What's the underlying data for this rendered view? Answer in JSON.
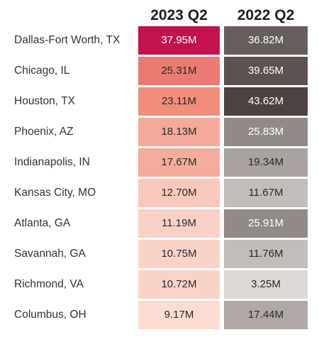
{
  "chart_data": {
    "type": "heatmap",
    "columns": [
      "2023 Q2",
      "2022 Q2"
    ],
    "rows": [
      "Dallas-Fort Worth, TX",
      "Chicago, IL",
      "Houston, TX",
      "Phoenix, AZ",
      "Indianapolis, IN",
      "Kansas City, MO",
      "Atlanta, GA",
      "Savannah, GA",
      "Richmond, VA",
      "Columbus, OH"
    ],
    "series": [
      {
        "values": [
          37.95,
          25.31,
          23.11,
          18.13,
          17.67,
          12.7,
          11.19,
          10.75,
          10.72,
          9.17
        ],
        "labels": [
          "37.95M",
          "25.31M",
          "23.11M",
          "18.13M",
          "17.67M",
          "12.70M",
          "11.19M",
          "10.75M",
          "10.72M",
          "9.17M"
        ]
      },
      {
        "values": [
          36.82,
          39.65,
          43.62,
          25.83,
          19.34,
          11.67,
          25.91,
          11.76,
          3.25,
          17.44
        ],
        "labels": [
          "36.82M",
          "39.65M",
          "43.62M",
          "25.83M",
          "19.34M",
          "11.67M",
          "25.91M",
          "11.76M",
          "3.25M",
          "17.44M"
        ]
      }
    ],
    "colors": {
      "col_0": [
        "#fbdcd2",
        "#f08a78",
        "#c2124f"
      ],
      "col_1": [
        "#ddd9d7",
        "#9c9493",
        "#4b4241"
      ],
      "text_on_dark": "#ffffff",
      "text_on_light": "#2b2b2b"
    }
  }
}
